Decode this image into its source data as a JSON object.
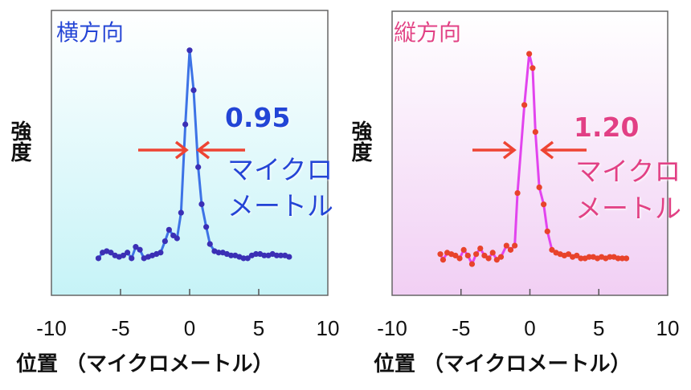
{
  "chart_data": [
    {
      "type": "line",
      "title": "横方向",
      "xlabel": "位置 （マイクロメートル）",
      "ylabel": "強度",
      "xlim": [
        -10,
        10
      ],
      "ylim": [
        0,
        1
      ],
      "xticks": [
        "-10",
        "-5",
        "0",
        "5",
        "10"
      ],
      "annotation": {
        "value": "0.95",
        "unit_line1": "マイクロ",
        "unit_line2": "メートル"
      },
      "colors": {
        "line": "#3d73e6",
        "marker": "#3b2fb5",
        "text": "#2444d6",
        "bg_top": "#ffffff",
        "bg_bottom": "#c6f3f7"
      },
      "x": [
        -6.6,
        -6.3,
        -6.0,
        -5.7,
        -5.4,
        -5.1,
        -4.8,
        -4.5,
        -4.2,
        -3.9,
        -3.6,
        -3.3,
        -3.0,
        -2.7,
        -2.4,
        -2.1,
        -1.78,
        -1.49,
        -1.18,
        -0.91,
        -0.62,
        -0.31,
        0,
        0.29,
        0.62,
        0.87,
        1.2,
        1.47,
        1.8,
        2.1,
        2.4,
        2.7,
        3.0,
        3.3,
        3.6,
        3.9,
        4.2,
        4.5,
        4.8,
        5.1,
        5.4,
        5.7,
        6.0,
        6.3,
        6.6,
        6.9,
        7.2
      ],
      "y": [
        0.13,
        0.15,
        0.155,
        0.15,
        0.14,
        0.135,
        0.14,
        0.15,
        0.13,
        0.17,
        0.16,
        0.13,
        0.135,
        0.14,
        0.145,
        0.15,
        0.19,
        0.23,
        0.21,
        0.2,
        0.29,
        0.6,
        0.86,
        0.72,
        0.45,
        0.32,
        0.24,
        0.18,
        0.155,
        0.15,
        0.15,
        0.145,
        0.14,
        0.14,
        0.135,
        0.13,
        0.13,
        0.14,
        0.145,
        0.145,
        0.14,
        0.14,
        0.145,
        0.14,
        0.14,
        0.14,
        0.135
      ]
    },
    {
      "type": "line",
      "title": "縦方向",
      "xlabel": "位置 （マイクロメートル）",
      "ylabel": "強度",
      "xlim": [
        -10,
        10
      ],
      "ylim": [
        0,
        1
      ],
      "xticks": [
        "-10",
        "-5",
        "0",
        "5",
        "10"
      ],
      "annotation": {
        "value": "1.20",
        "unit_line1": "マイクロ",
        "unit_line2": "メートル"
      },
      "colors": {
        "line": "#e244ee",
        "marker": "#e8432b",
        "text": "#e23f85",
        "bg_top": "#ffffff",
        "bg_bottom": "#f1cff4"
      },
      "x": [
        -6.5,
        -6.3,
        -6.0,
        -5.7,
        -5.4,
        -5.1,
        -4.8,
        -4.5,
        -4.2,
        -3.9,
        -3.6,
        -3.3,
        -3.0,
        -2.7,
        -2.4,
        -2.1,
        -1.7,
        -1.4,
        -1.1,
        -0.9,
        -0.4,
        -0.05,
        0.2,
        0.4,
        0.68,
        1.0,
        1.27,
        1.6,
        1.9,
        2.2,
        2.5,
        2.8,
        3.1,
        3.4,
        3.7,
        4.0,
        4.3,
        4.6,
        4.9,
        5.2,
        5.5,
        5.8,
        6.1,
        6.4,
        6.7,
        7.0
      ],
      "y": [
        0.145,
        0.125,
        0.15,
        0.145,
        0.14,
        0.13,
        0.16,
        0.14,
        0.11,
        0.145,
        0.165,
        0.14,
        0.13,
        0.15,
        0.125,
        0.135,
        0.175,
        0.16,
        0.175,
        0.36,
        0.67,
        0.85,
        0.8,
        0.575,
        0.38,
        0.32,
        0.225,
        0.16,
        0.15,
        0.145,
        0.14,
        0.145,
        0.135,
        0.14,
        0.13,
        0.13,
        0.135,
        0.135,
        0.13,
        0.135,
        0.13,
        0.135,
        0.135,
        0.13,
        0.13,
        0.13
      ]
    }
  ]
}
